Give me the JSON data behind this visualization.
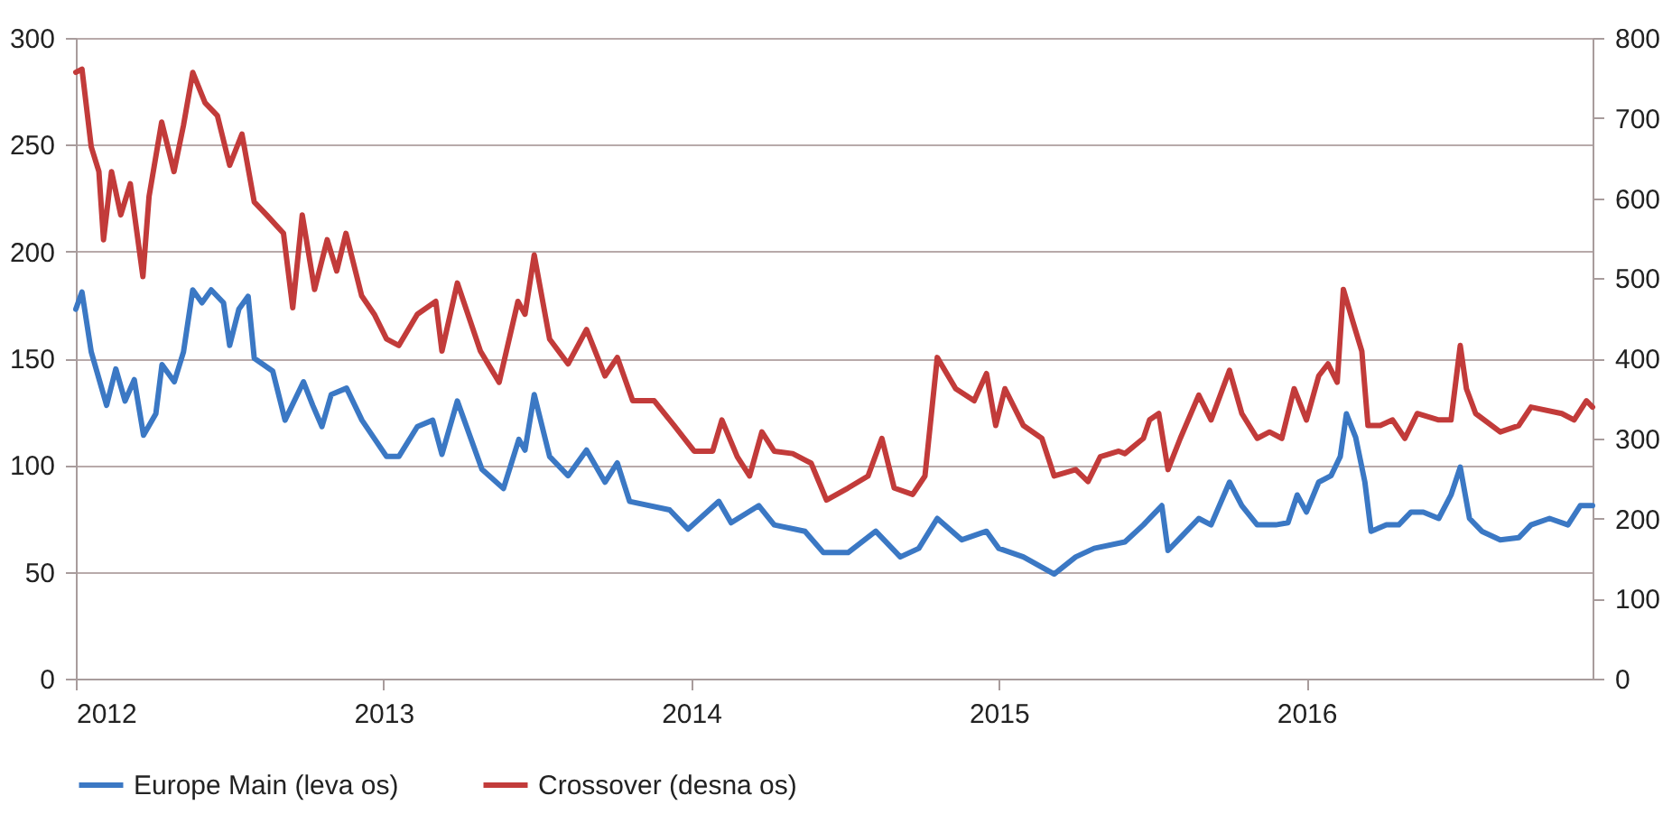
{
  "chart_data": {
    "type": "line",
    "xlim": [
      2012,
      2016.93
    ],
    "xticks": [
      2012,
      2013,
      2014,
      2015,
      2016
    ],
    "ylim": [
      0,
      300
    ],
    "yticks": [
      0,
      50,
      100,
      150,
      200,
      250,
      300
    ],
    "y2lim": [
      0,
      800
    ],
    "y2ticks": [
      0,
      100,
      200,
      300,
      400,
      500,
      600,
      700,
      800
    ],
    "grid": "y",
    "legend": "bottom",
    "line_style": "solid",
    "series": [
      {
        "name": "Europe Main (leva os)",
        "color": "#3b78c4",
        "axis": "y",
        "x": [
          2012.0,
          2012.02,
          2012.05,
          2012.1,
          2012.13,
          2012.16,
          2012.19,
          2012.22,
          2012.26,
          2012.28,
          2012.32,
          2012.35,
          2012.38,
          2012.41,
          2012.44,
          2012.48,
          2012.5,
          2012.53,
          2012.56,
          2012.58,
          2012.64,
          2012.68,
          2012.74,
          2012.77,
          2012.8,
          2012.83,
          2012.88,
          2012.93,
          2013.01,
          2013.05,
          2013.11,
          2013.16,
          2013.19,
          2013.24,
          2013.32,
          2013.39,
          2013.44,
          2013.46,
          2013.49,
          2013.54,
          2013.6,
          2013.66,
          2013.72,
          2013.76,
          2013.8,
          2013.93,
          2013.99,
          2014.09,
          2014.13,
          2014.22,
          2014.27,
          2014.37,
          2014.43,
          2014.51,
          2014.6,
          2014.68,
          2014.74,
          2014.8,
          2014.88,
          2014.96,
          2015.0,
          2015.08,
          2015.18,
          2015.25,
          2015.31,
          2015.41,
          2015.47,
          2015.51,
          2015.53,
          2015.55,
          2015.59,
          2015.65,
          2015.69,
          2015.75,
          2015.79,
          2015.84,
          2015.9,
          2015.94,
          2015.97,
          2016.0,
          2016.04,
          2016.08,
          2016.11,
          2016.13,
          2016.16,
          2016.19,
          2016.21,
          2016.26,
          2016.3,
          2016.34,
          2016.38,
          2016.43,
          2016.47,
          2016.5,
          2016.53,
          2016.57,
          2016.63,
          2016.69,
          2016.73,
          2016.79,
          2016.85,
          2016.89,
          2016.93
        ],
        "values": [
          173,
          181,
          153,
          128,
          145,
          130,
          140,
          114,
          124,
          147,
          139,
          153,
          182,
          176,
          182,
          176,
          156,
          173,
          179,
          150,
          144,
          121,
          139,
          128,
          118,
          133,
          136,
          121,
          104,
          104,
          118,
          121,
          105,
          130,
          98,
          89,
          112,
          107,
          133,
          104,
          95,
          107,
          92,
          101,
          83,
          79,
          70,
          83,
          73,
          81,
          72,
          69,
          59,
          59,
          69,
          57,
          61,
          75,
          65,
          69,
          61,
          57,
          49,
          57,
          61,
          64,
          72,
          78,
          81,
          60,
          66,
          75,
          72,
          92,
          81,
          72,
          72,
          73,
          86,
          78,
          92,
          95,
          104,
          124,
          113,
          92,
          69,
          72,
          72,
          78,
          78,
          75,
          86,
          99,
          75,
          69,
          65,
          66,
          72,
          75,
          72,
          81,
          81
        ]
      },
      {
        "name": "Crossover (desna os)",
        "color": "#c23b3a",
        "axis": "y2",
        "x": [
          2012.0,
          2012.02,
          2012.05,
          2012.075,
          2012.09,
          2012.116,
          2012.146,
          2012.177,
          2012.218,
          2012.238,
          2012.279,
          2012.319,
          2012.35,
          2012.38,
          2012.42,
          2012.46,
          2012.5,
          2012.54,
          2012.58,
          2012.62,
          2012.675,
          2012.705,
          2012.736,
          2012.776,
          2012.817,
          2012.848,
          2012.878,
          2012.929,
          2012.97,
          2013.01,
          2013.05,
          2013.11,
          2013.17,
          2013.19,
          2013.24,
          2013.315,
          2013.376,
          2013.437,
          2013.46,
          2013.49,
          2013.54,
          2013.6,
          2013.66,
          2013.72,
          2013.76,
          2013.81,
          2013.88,
          2013.945,
          2014.01,
          2014.07,
          2014.1,
          2014.15,
          2014.19,
          2014.23,
          2014.27,
          2014.33,
          2014.39,
          2014.44,
          2014.51,
          2014.575,
          2014.62,
          2014.66,
          2014.72,
          2014.76,
          2014.8,
          2014.86,
          2014.92,
          2014.96,
          2014.99,
          2015.02,
          2015.08,
          2015.14,
          2015.18,
          2015.25,
          2015.29,
          2015.33,
          2015.39,
          2015.41,
          2015.47,
          2015.49,
          2015.52,
          2015.55,
          2015.59,
          2015.65,
          2015.69,
          2015.75,
          2015.79,
          2015.84,
          2015.88,
          2015.92,
          2015.96,
          2016.0,
          2016.04,
          2016.07,
          2016.1,
          2016.12,
          2016.15,
          2016.18,
          2016.2,
          2016.24,
          2016.28,
          2016.32,
          2016.36,
          2016.43,
          2016.47,
          2016.5,
          2016.52,
          2016.55,
          2016.63,
          2016.69,
          2016.73,
          2016.83,
          2016.87,
          2016.91,
          2016.93
        ],
        "values": [
          757,
          761,
          664,
          633,
          548,
          633,
          579,
          618,
          502,
          602,
          695,
          633,
          691,
          757,
          719,
          703,
          641,
          680,
          595,
          579,
          556,
          463,
          579,
          486,
          548,
          509,
          556,
          478,
          455,
          424,
          416,
          455,
          471,
          409,
          494,
          409,
          370,
          471,
          455,
          529,
          424,
          393,
          436,
          378,
          401,
          347,
          347,
          316,
          284,
          284,
          323,
          277,
          253,
          308,
          284,
          281,
          269,
          223,
          238,
          253,
          300,
          238,
          230,
          253,
          401,
          362,
          347,
          381,
          316,
          362,
          316,
          300,
          253,
          261,
          246,
          277,
          284,
          281,
          300,
          323,
          331,
          261,
          300,
          354,
          323,
          385,
          331,
          300,
          308,
          300,
          362,
          323,
          378,
          393,
          370,
          486,
          447,
          409,
          316,
          316,
          323,
          300,
          331,
          323,
          323,
          416,
          362,
          331,
          308,
          316,
          339,
          331,
          323,
          347,
          339
        ]
      }
    ]
  }
}
